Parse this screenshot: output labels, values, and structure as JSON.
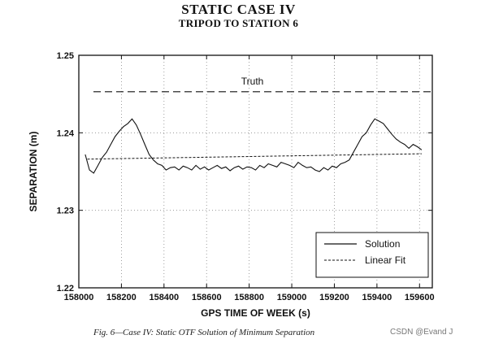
{
  "chart_data": {
    "type": "line",
    "title": "STATIC CASE IV",
    "subtitle": "TRIPOD TO STATION 6",
    "xlabel": "GPS TIME OF WEEK (s)",
    "ylabel": "SEPARATION (m)",
    "xlim": [
      158000,
      159660
    ],
    "ylim": [
      1.22,
      1.25
    ],
    "xticks": [
      158000,
      158200,
      158400,
      158600,
      158800,
      159000,
      159200,
      159400,
      159600
    ],
    "yticks": [
      1.22,
      1.23,
      1.24,
      1.25
    ],
    "grid": true,
    "legend_position": "bottom-right",
    "annotation": "Truth",
    "truth_value": 1.2453,
    "series": [
      {
        "name": "Solution",
        "style": "solid",
        "x": [
          158030,
          158050,
          158070,
          158090,
          158110,
          158130,
          158150,
          158170,
          158190,
          158210,
          158230,
          158250,
          158270,
          158290,
          158310,
          158330,
          158350,
          158370,
          158390,
          158410,
          158430,
          158450,
          158470,
          158490,
          158510,
          158530,
          158550,
          158570,
          158590,
          158610,
          158630,
          158650,
          158670,
          158690,
          158710,
          158730,
          158750,
          158770,
          158790,
          158810,
          158830,
          158850,
          158870,
          158890,
          158910,
          158930,
          158950,
          158970,
          158990,
          159010,
          159030,
          159050,
          159070,
          159090,
          159110,
          159130,
          159150,
          159170,
          159190,
          159210,
          159230,
          159250,
          159270,
          159290,
          159310,
          159330,
          159350,
          159370,
          159390,
          159410,
          159430,
          159450,
          159470,
          159490,
          159510,
          159530,
          159550,
          159570,
          159590,
          159610
        ],
        "y": [
          1.2372,
          1.2352,
          1.2348,
          1.2358,
          1.2368,
          1.2375,
          1.2385,
          1.2395,
          1.2402,
          1.2408,
          1.2412,
          1.2418,
          1.241,
          1.2398,
          1.2385,
          1.2372,
          1.2365,
          1.236,
          1.2358,
          1.2352,
          1.2355,
          1.2356,
          1.2352,
          1.2357,
          1.2355,
          1.2352,
          1.2358,
          1.2353,
          1.2356,
          1.2352,
          1.2355,
          1.2358,
          1.2354,
          1.2356,
          1.2351,
          1.2355,
          1.2357,
          1.2353,
          1.2356,
          1.2355,
          1.2352,
          1.2358,
          1.2355,
          1.236,
          1.2358,
          1.2356,
          1.2362,
          1.236,
          1.2358,
          1.2355,
          1.2362,
          1.2358,
          1.2355,
          1.2356,
          1.2352,
          1.235,
          1.2355,
          1.2352,
          1.2357,
          1.2355,
          1.236,
          1.2362,
          1.2365,
          1.2375,
          1.2385,
          1.2395,
          1.24,
          1.241,
          1.2418,
          1.2415,
          1.2412,
          1.2405,
          1.2398,
          1.2392,
          1.2388,
          1.2385,
          1.238,
          1.2385,
          1.2382,
          1.2378
        ]
      },
      {
        "name": "Linear Fit",
        "style": "dashed",
        "x": [
          158040,
          159610
        ],
        "y": [
          1.2366,
          1.2373
        ]
      }
    ]
  },
  "caption": "Fig. 6—Case IV: Static OTF Solution of Minimum Separation",
  "watermark": "CSDN @Evand J"
}
